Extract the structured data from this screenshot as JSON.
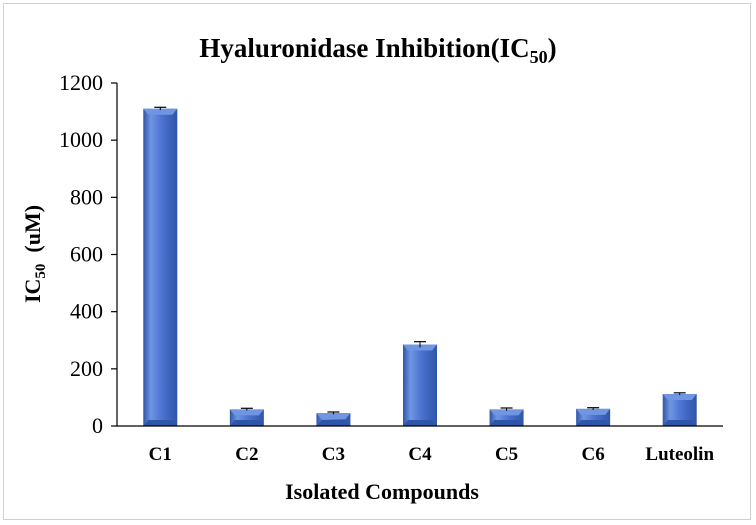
{
  "chart_data": {
    "type": "bar",
    "title": {
      "main": "Hyaluronidase Inhibition(IC",
      "sub": "50",
      "end": ")"
    },
    "xlabel": "Isolated Compounds",
    "ylabel": {
      "main": "IC",
      "sub": "50",
      "end": "  (uM)"
    },
    "categories": [
      "C1",
      "C2",
      "C3",
      "C4",
      "C5",
      "C6",
      "Luteolin"
    ],
    "values": [
      1110,
      58,
      45,
      285,
      58,
      60,
      112
    ],
    "errors": [
      5,
      4,
      4,
      10,
      5,
      4,
      4
    ],
    "ylim": [
      0,
      1200
    ],
    "yticks": [
      "0",
      "200",
      "400",
      "600",
      "800",
      "1000",
      "1200"
    ],
    "grid": false,
    "legend": "none",
    "colors": {
      "bar_light": "#6f95e3",
      "bar_mid": "#4a72cf",
      "bar_dark": "#2f55a8",
      "axis": "#000000"
    }
  }
}
